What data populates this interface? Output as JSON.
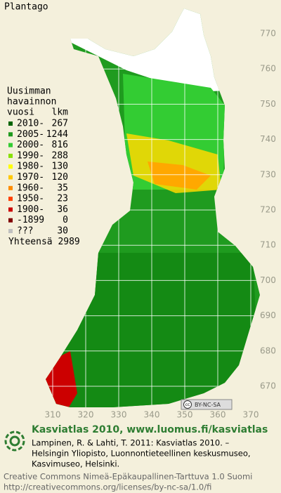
{
  "title": "Plantago",
  "legend": {
    "heading": [
      "Uusimman",
      "havainnon",
      "vuosi"
    ],
    "count_heading": "lkm",
    "rows": [
      {
        "label": "2010-",
        "count": 267,
        "color": "#006400"
      },
      {
        "label": "2005-",
        "count": 1244,
        "color": "#1e9a1e"
      },
      {
        "label": "2000-",
        "count": 816,
        "color": "#33cc33"
      },
      {
        "label": "1990-",
        "count": 288,
        "color": "#88e000"
      },
      {
        "label": "1980-",
        "count": 130,
        "color": "#ffff00"
      },
      {
        "label": "1970-",
        "count": 120,
        "color": "#ffc800"
      },
      {
        "label": "1960-",
        "count": 35,
        "color": "#ff8c00"
      },
      {
        "label": "1950-",
        "count": 23,
        "color": "#ff4000"
      },
      {
        "label": "1900-",
        "count": 36,
        "color": "#cc0000"
      },
      {
        "label": "-1899",
        "count": 0,
        "color": "#800000"
      },
      {
        "label": "???",
        "count": 30,
        "color": "#c0c0c0"
      }
    ],
    "total": "Yhteensä 2989"
  },
  "map": {
    "yticks": [
      770,
      760,
      750,
      740,
      730,
      720,
      710,
      700,
      690,
      680,
      670
    ],
    "xticks": [
      310,
      320,
      330,
      340,
      350,
      360,
      370
    ]
  },
  "license_badge": {
    "icon": "cc",
    "text": "BY-NC-SA"
  },
  "footer": {
    "headline": "Kasviatlas 2010, www.luomus.fi/kasviatlas",
    "citation": [
      "Lampinen, R. & Lahti, T. 2011: Kasviatlas 2010. –",
      "Helsingin Yliopisto, Luonnontieteellinen keskusmuseo,",
      "Kasvimuseo, Helsinki."
    ],
    "license": [
      "Creative Commons Nimeä-Epäkaupallinen-Tarttuva 1.0 Suomi",
      "http://creativecommons.org/licenses/by-nc-sa/1.0/fi"
    ]
  }
}
